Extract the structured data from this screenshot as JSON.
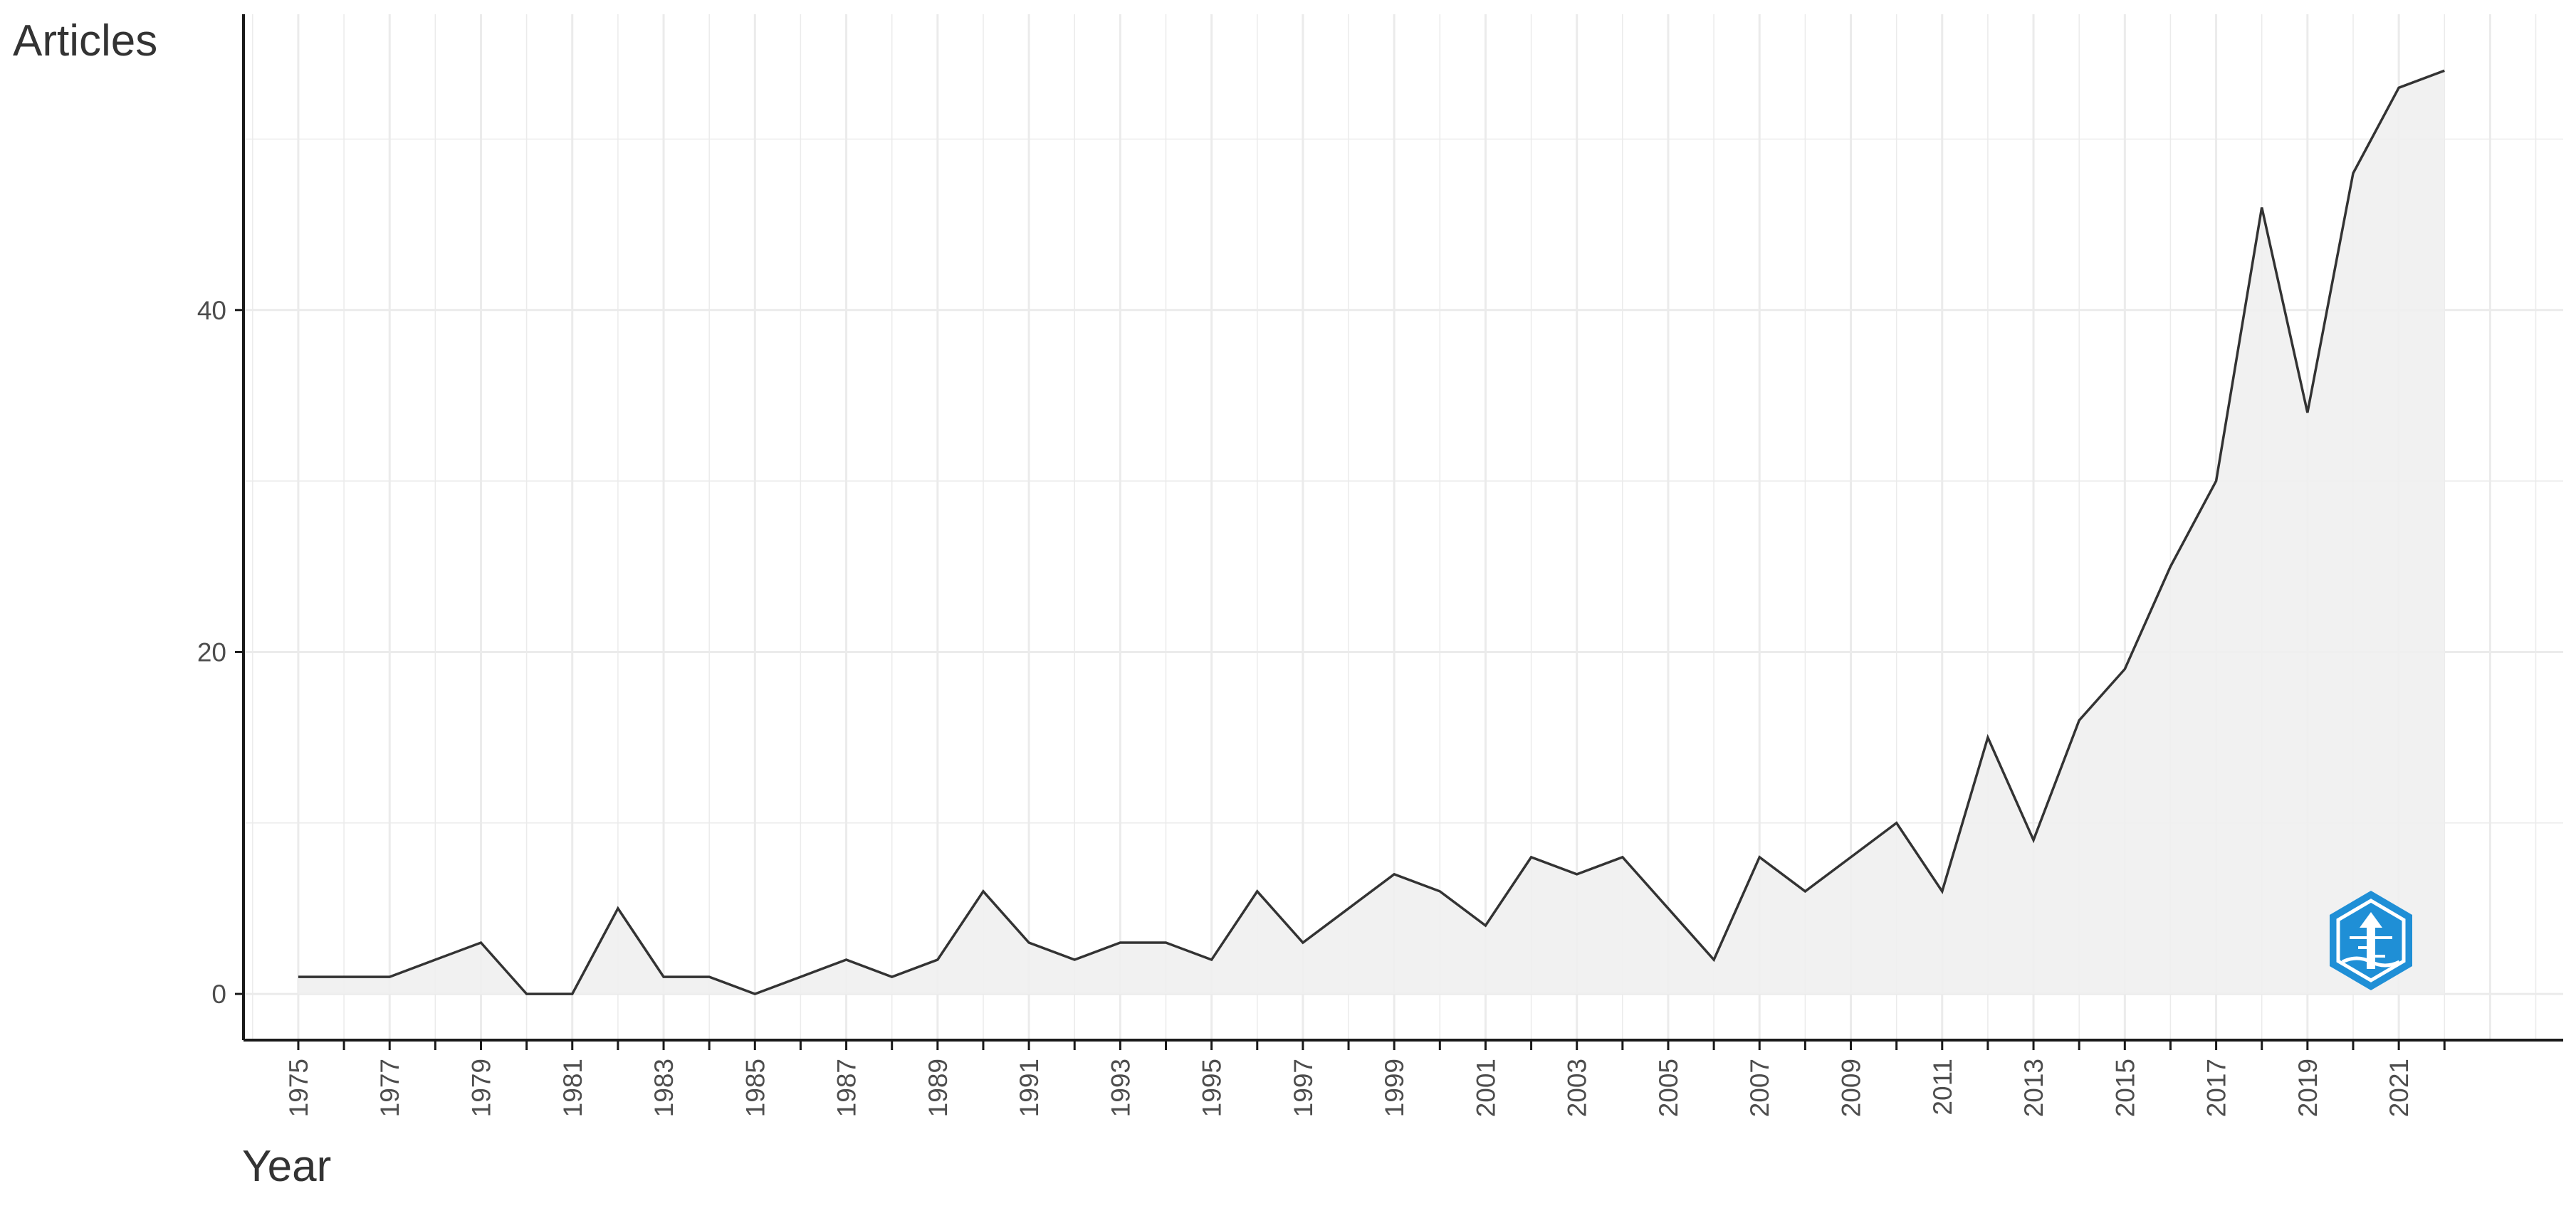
{
  "chart_data": {
    "type": "area",
    "xlabel": "Year",
    "ylabel": "Articles",
    "x": [
      1975,
      1976,
      1977,
      1978,
      1979,
      1980,
      1981,
      1982,
      1983,
      1984,
      1985,
      1986,
      1987,
      1988,
      1989,
      1990,
      1991,
      1992,
      1993,
      1994,
      1995,
      1996,
      1997,
      1998,
      1999,
      2000,
      2001,
      2002,
      2003,
      2004,
      2005,
      2006,
      2007,
      2008,
      2009,
      2010,
      2011,
      2012,
      2013,
      2014,
      2015,
      2016,
      2017,
      2018,
      2019,
      2020,
      2021,
      2022
    ],
    "values": [
      1,
      1,
      1,
      2,
      3,
      0,
      0,
      5,
      1,
      1,
      0,
      1,
      2,
      1,
      2,
      6,
      3,
      2,
      3,
      3,
      2,
      6,
      3,
      5,
      7,
      6,
      4,
      8,
      7,
      8,
      5,
      2,
      8,
      6,
      8,
      10,
      6,
      15,
      9,
      16,
      19,
      25,
      30,
      46,
      34,
      48,
      53,
      54
    ],
    "x_ticks": [
      "1975",
      "1977",
      "1979",
      "1981",
      "1983",
      "1985",
      "1987",
      "1989",
      "1991",
      "1993",
      "1995",
      "1997",
      "1999",
      "2001",
      "2003",
      "2005",
      "2007",
      "2009",
      "2011",
      "2013",
      "2015",
      "2017",
      "2019",
      "2021"
    ],
    "y_ticks": [
      "0",
      "20",
      "40"
    ],
    "xlim": [
      1973.8,
      2024.6
    ],
    "ylim": [
      -2.7,
      57.3
    ],
    "grid": true,
    "colors": {
      "line": "#333333",
      "fill": "#f0f0f0",
      "grid": "#ebebeb",
      "axis": "#1a1a1a",
      "logo": "#1f8fd6"
    }
  },
  "logo": {
    "icon": "journal-logo-icon"
  }
}
